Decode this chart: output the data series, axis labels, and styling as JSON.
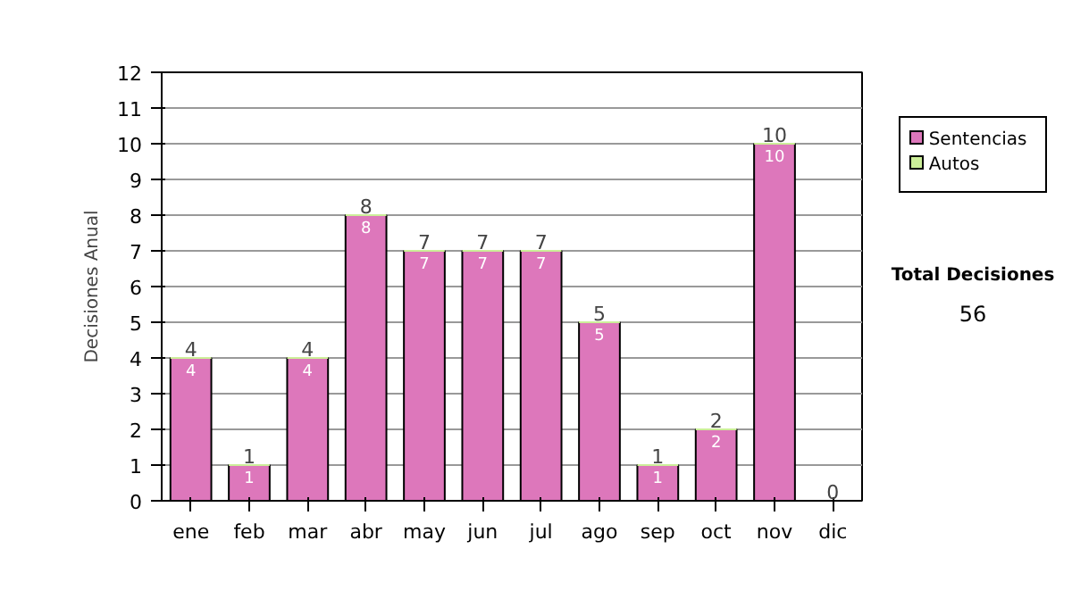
{
  "chart_data": {
    "type": "bar",
    "stacked": true,
    "ylabel": "Decisiones Anual",
    "categories": [
      "ene",
      "feb",
      "mar",
      "abr",
      "may",
      "jun",
      "jul",
      "ago",
      "sep",
      "oct",
      "nov",
      "dic"
    ],
    "series": [
      {
        "name": "Sentencias",
        "color": "#dd77bb",
        "values": [
          4,
          1,
          4,
          8,
          7,
          7,
          7,
          5,
          1,
          2,
          10,
          0
        ],
        "value_labels": [
          "4",
          "1",
          "4",
          "8",
          "7",
          "7",
          "7",
          "5",
          "1",
          "2",
          "10",
          null
        ]
      },
      {
        "name": "Autos",
        "color": "#ccee99",
        "values": [
          0,
          0,
          0,
          0,
          0,
          0,
          0,
          0,
          0,
          0,
          0,
          0
        ]
      }
    ],
    "totals": [
      "4",
      "1",
      "4",
      "8",
      "7",
      "7",
      "7",
      "5",
      "1",
      "2",
      "10",
      "0"
    ],
    "ylim": [
      0,
      12
    ],
    "yticks": [
      0,
      1,
      2,
      3,
      4,
      5,
      6,
      7,
      8,
      9,
      10,
      11,
      12
    ],
    "grid": "y",
    "legend": "right",
    "annotations": [
      "Total Decisiones",
      "56"
    ]
  }
}
